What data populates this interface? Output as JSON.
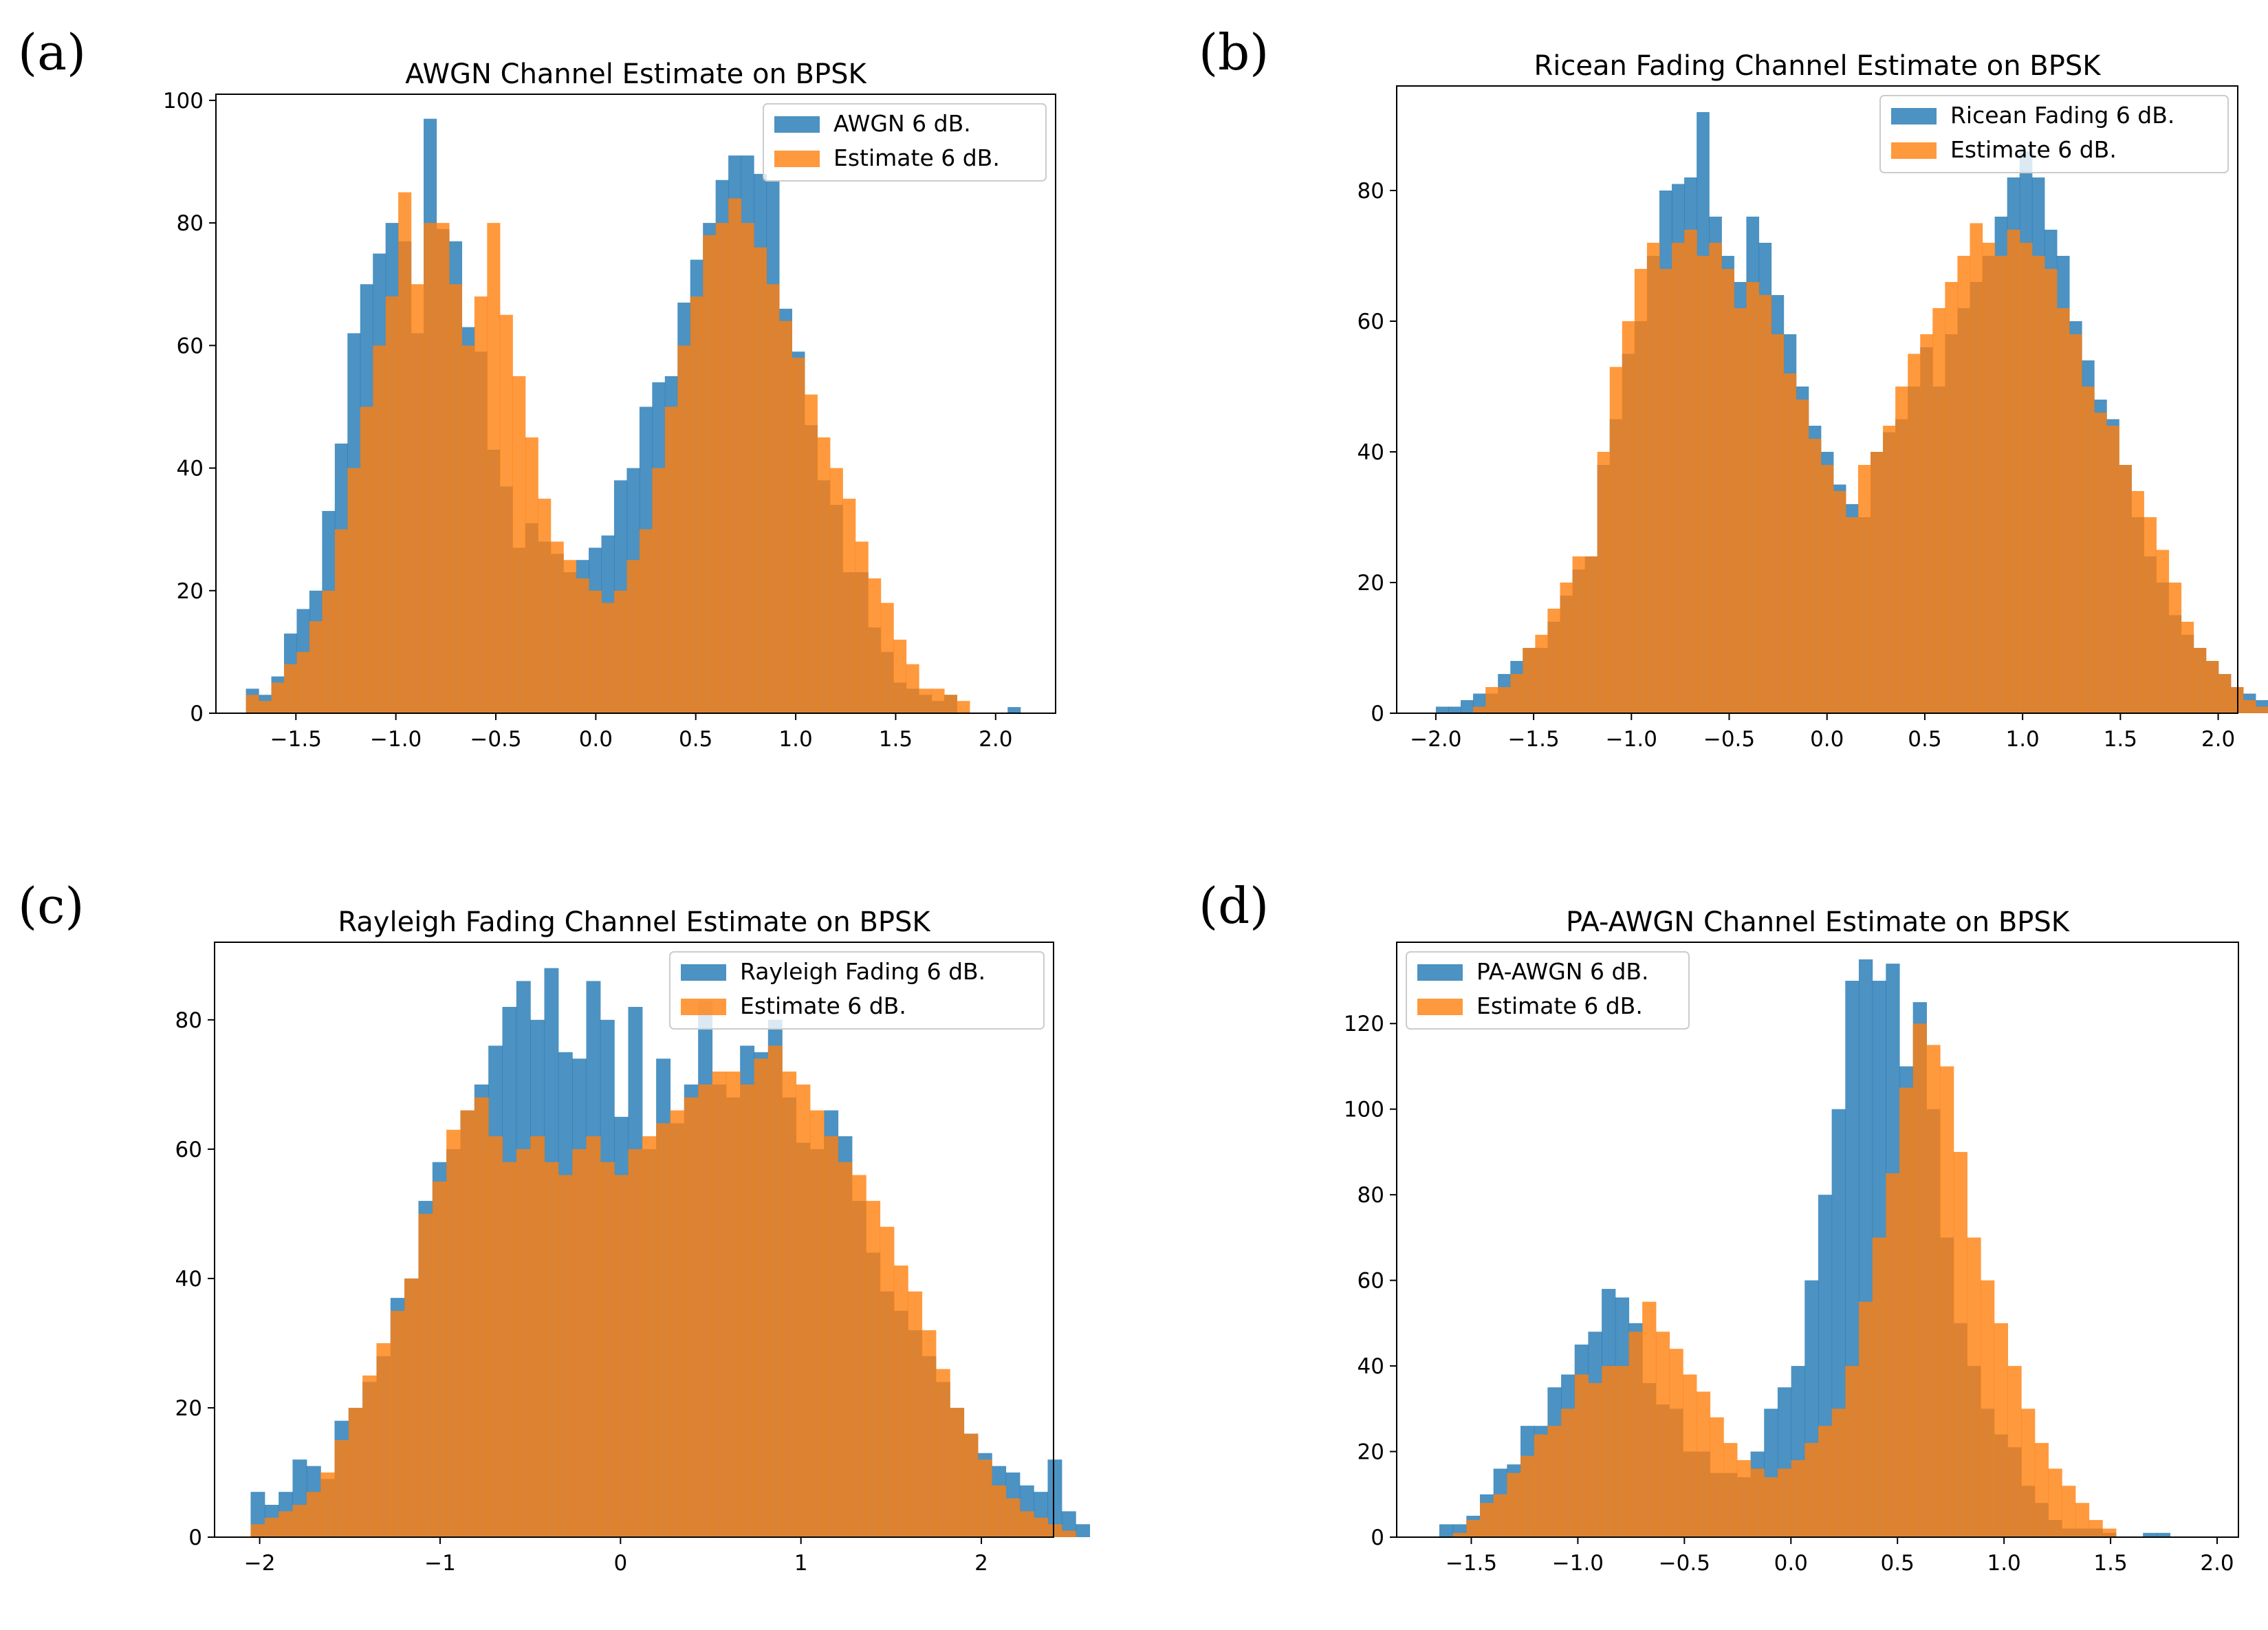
{
  "colors": {
    "blue": "#1f77b4",
    "orange": "#ff7f0e",
    "alpha": 0.8
  },
  "chart_data": [
    {
      "panel_label": "(a)",
      "type": "bar",
      "title": "AWGN Channel Estimate on BPSK",
      "xlim": [
        -1.9,
        2.3
      ],
      "ylim": [
        0,
        101
      ],
      "xticks": [
        -1.5,
        -1.0,
        -0.5,
        0.0,
        0.5,
        1.0,
        1.5,
        2.0
      ],
      "xtick_labels": [
        "−1.5",
        "−1.0",
        "−0.5",
        "0.0",
        "0.5",
        "1.0",
        "1.5",
        "2.0"
      ],
      "yticks": [
        0,
        20,
        40,
        60,
        80,
        100
      ],
      "ytick_labels": [
        "0",
        "20",
        "40",
        "60",
        "80",
        "100"
      ],
      "legend": "top-right",
      "series": [
        {
          "name": "AWGN 6 dB.",
          "color": "#1f77b4",
          "bin_start": -1.75,
          "bin_width": 0.0635,
          "values": [
            4,
            3,
            6,
            13,
            17,
            20,
            33,
            44,
            62,
            70,
            75,
            80,
            77,
            62,
            97,
            79,
            77,
            63,
            59,
            43,
            37,
            27,
            31,
            28,
            26,
            23,
            25,
            27,
            29,
            38,
            40,
            50,
            54,
            55,
            67,
            74,
            80,
            87,
            91,
            91,
            88,
            87,
            66,
            59,
            47,
            38,
            34,
            23,
            23,
            14,
            10,
            5,
            4,
            3,
            2,
            3,
            0,
            0,
            0,
            0,
            1
          ]
        },
        {
          "name": "Estimate 6 dB.",
          "color": "#ff7f0e",
          "bin_start": -1.75,
          "bin_width": 0.0635,
          "values": [
            3,
            2,
            5,
            8,
            10,
            15,
            20,
            30,
            40,
            50,
            60,
            68,
            85,
            70,
            80,
            80,
            70,
            60,
            68,
            80,
            65,
            55,
            45,
            35,
            28,
            25,
            22,
            20,
            18,
            20,
            25,
            30,
            40,
            50,
            60,
            68,
            78,
            80,
            84,
            80,
            76,
            70,
            64,
            58,
            52,
            45,
            40,
            35,
            28,
            22,
            18,
            12,
            8,
            4,
            4,
            3,
            2,
            0,
            0,
            0,
            0
          ]
        }
      ]
    },
    {
      "panel_label": "(b)",
      "type": "bar",
      "title": "Ricean Fading Channel Estimate on BPSK",
      "xlim": [
        -2.2,
        2.1
      ],
      "ylim": [
        0,
        96
      ],
      "xticks": [
        -2.0,
        -1.5,
        -1.0,
        -0.5,
        0.0,
        0.5,
        1.0,
        1.5,
        2.0
      ],
      "xtick_labels": [
        "−2.0",
        "−1.5",
        "−1.0",
        "−0.5",
        "0.0",
        "0.5",
        "1.0",
        "1.5",
        "2.0"
      ],
      "yticks": [
        0,
        20,
        40,
        60,
        80
      ],
      "ytick_labels": [
        "0",
        "20",
        "40",
        "60",
        "80"
      ],
      "legend": "top-right",
      "series": [
        {
          "name": "Ricean Fading 6 dB.",
          "color": "#1f77b4",
          "bin_start": -2.0,
          "bin_width": 0.0635,
          "values": [
            1,
            1,
            2,
            3,
            3,
            6,
            8,
            10,
            10,
            14,
            18,
            22,
            24,
            38,
            45,
            55,
            60,
            70,
            80,
            81,
            82,
            92,
            76,
            70,
            66,
            76,
            72,
            64,
            58,
            50,
            44,
            40,
            35,
            32,
            30,
            40,
            43,
            45,
            50,
            56,
            50,
            58,
            62,
            66,
            70,
            76,
            82,
            86,
            82,
            74,
            70,
            60,
            54,
            48,
            45,
            38,
            30,
            24,
            20,
            15,
            12,
            10,
            8,
            6,
            4,
            3,
            2,
            1
          ]
        },
        {
          "name": "Estimate 6 dB.",
          "color": "#ff7f0e",
          "bin_start": -2.0,
          "bin_width": 0.0635,
          "values": [
            0,
            0,
            0,
            1,
            4,
            4,
            6,
            10,
            12,
            16,
            20,
            24,
            24,
            40,
            53,
            60,
            68,
            72,
            68,
            72,
            74,
            70,
            72,
            68,
            62,
            66,
            64,
            58,
            52,
            48,
            42,
            38,
            34,
            30,
            38,
            40,
            44,
            50,
            55,
            58,
            62,
            66,
            70,
            75,
            72,
            70,
            74,
            72,
            70,
            68,
            62,
            58,
            50,
            46,
            44,
            38,
            34,
            30,
            25,
            20,
            14,
            10,
            8,
            6,
            4,
            2,
            1,
            0
          ]
        }
      ]
    },
    {
      "panel_label": "(c)",
      "type": "bar",
      "title": "Rayleigh Fading Channel Estimate on BPSK",
      "xlim": [
        -2.25,
        2.4
      ],
      "ylim": [
        0,
        92
      ],
      "xticks": [
        -2,
        -1,
        0,
        1,
        2
      ],
      "xtick_labels": [
        "−2",
        "−1",
        "0",
        "1",
        "2"
      ],
      "yticks": [
        0,
        20,
        40,
        60,
        80
      ],
      "ytick_labels": [
        "0",
        "20",
        "40",
        "60",
        "80"
      ],
      "legend": "top-right",
      "series": [
        {
          "name": "Rayleigh Fading 6 dB.",
          "color": "#1f77b4",
          "bin_start": -2.05,
          "bin_width": 0.0775,
          "values": [
            7,
            5,
            7,
            12,
            11,
            9,
            18,
            20,
            24,
            28,
            37,
            40,
            52,
            58,
            60,
            66,
            70,
            76,
            82,
            86,
            80,
            88,
            75,
            74,
            86,
            80,
            65,
            82,
            60,
            74,
            64,
            70,
            83,
            70,
            68,
            76,
            75,
            80,
            68,
            61,
            60,
            66,
            62,
            52,
            44,
            38,
            35,
            32,
            28,
            24,
            20,
            16,
            13,
            11,
            10,
            8,
            7,
            12,
            4,
            2
          ]
        },
        {
          "name": "Estimate 6 dB.",
          "color": "#ff7f0e",
          "bin_start": -2.05,
          "bin_width": 0.0775,
          "values": [
            2,
            3,
            4,
            5,
            7,
            10,
            15,
            20,
            25,
            30,
            35,
            40,
            50,
            55,
            63,
            66,
            68,
            62,
            58,
            60,
            62,
            58,
            56,
            60,
            62,
            58,
            56,
            60,
            62,
            64,
            66,
            68,
            70,
            72,
            72,
            70,
            74,
            76,
            72,
            70,
            66,
            62,
            58,
            56,
            52,
            48,
            42,
            38,
            32,
            26,
            20,
            16,
            12,
            8,
            6,
            4,
            3,
            2,
            1,
            0
          ]
        }
      ]
    },
    {
      "panel_label": "(d)",
      "type": "bar",
      "title": "PA-AWGN Channel Estimate on BPSK",
      "xlim": [
        -1.85,
        2.1
      ],
      "ylim": [
        0,
        139
      ],
      "xticks": [
        -1.5,
        -1.0,
        -0.5,
        0.0,
        0.5,
        1.0,
        1.5,
        2.0
      ],
      "xtick_labels": [
        "−1.5",
        "−1.0",
        "−0.5",
        "0.0",
        "0.5",
        "1.0",
        "1.5",
        "2.0"
      ],
      "yticks": [
        0,
        20,
        40,
        60,
        80,
        100,
        120
      ],
      "ytick_labels": [
        "0",
        "20",
        "40",
        "60",
        "80",
        "100",
        "120"
      ],
      "legend": "top-left",
      "series": [
        {
          "name": "PA-AWGN 6 dB.",
          "color": "#1f77b4",
          "bin_start": -1.65,
          "bin_width": 0.0635,
          "values": [
            3,
            3,
            5,
            10,
            16,
            17,
            26,
            26,
            35,
            38,
            45,
            48,
            58,
            56,
            50,
            36,
            31,
            30,
            20,
            20,
            15,
            15,
            14,
            20,
            30,
            35,
            40,
            60,
            80,
            100,
            130,
            135,
            130,
            134,
            110,
            125,
            100,
            70,
            50,
            40,
            30,
            24,
            21,
            12,
            8,
            4,
            2,
            2,
            2,
            1,
            0,
            0,
            1,
            1
          ]
        },
        {
          "name": "Estimate 6 dB.",
          "color": "#ff7f0e",
          "bin_start": -1.65,
          "bin_width": 0.0635,
          "values": [
            0,
            1,
            4,
            8,
            10,
            15,
            19,
            24,
            26,
            30,
            38,
            36,
            40,
            40,
            48,
            55,
            48,
            44,
            38,
            34,
            28,
            22,
            18,
            16,
            14,
            16,
            18,
            22,
            26,
            30,
            40,
            55,
            70,
            85,
            105,
            120,
            115,
            110,
            90,
            70,
            60,
            50,
            40,
            30,
            22,
            16,
            12,
            8,
            4,
            2,
            0,
            0,
            0,
            0
          ]
        }
      ]
    }
  ]
}
